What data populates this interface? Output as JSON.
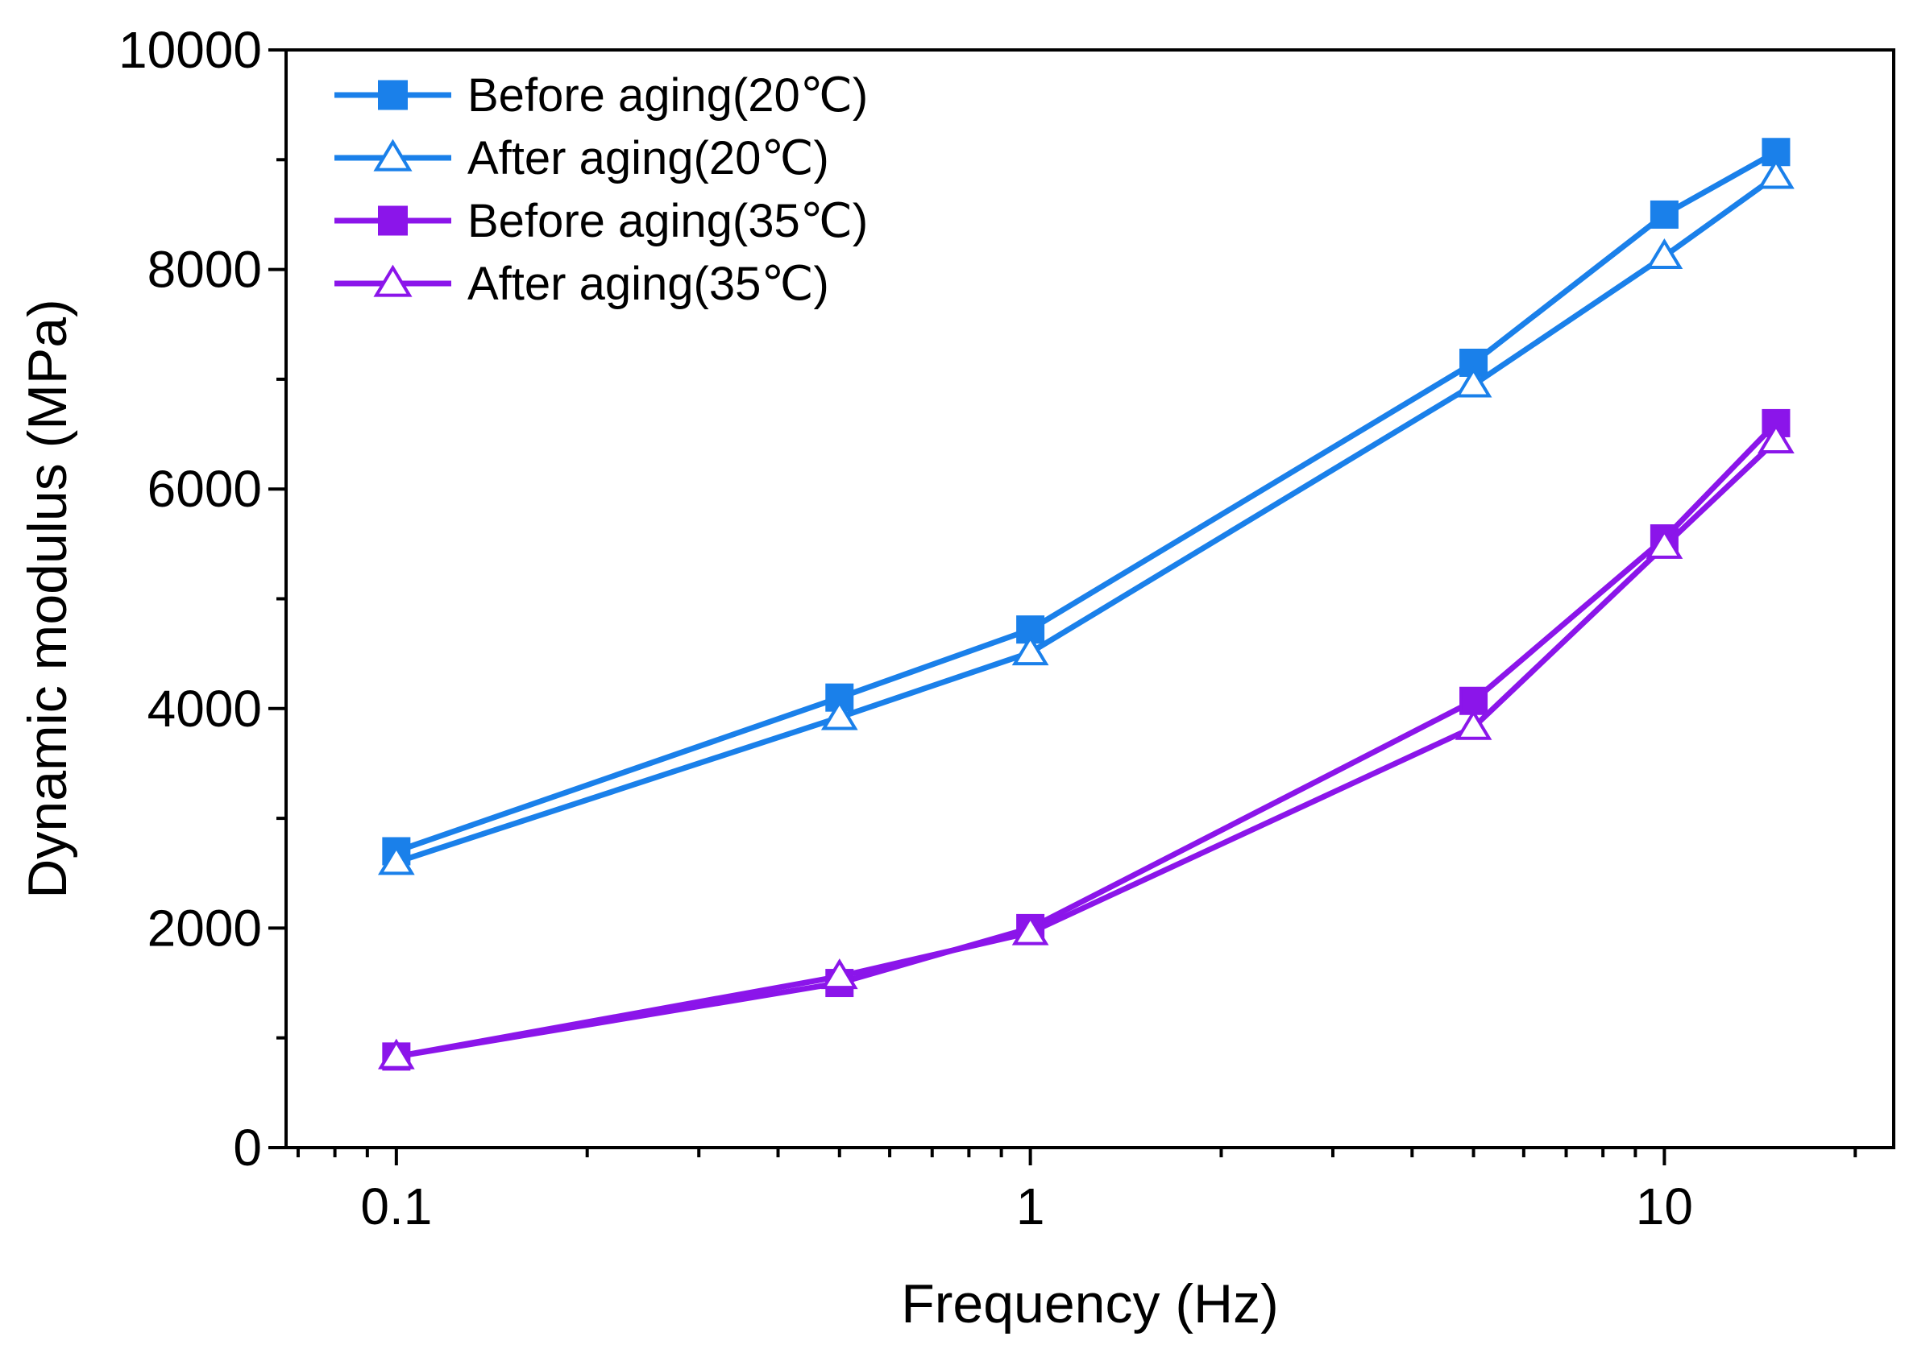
{
  "chart_data": {
    "type": "line",
    "title": "",
    "xlabel": "Frequency (Hz)",
    "ylabel": "Dynamic modulus (MPa)",
    "xscale": "log",
    "xlim": [
      0.067,
      23
    ],
    "ylim": [
      0,
      10000
    ],
    "x_ticks": [
      {
        "value": 0.1,
        "label": "0.1"
      },
      {
        "value": 1,
        "label": "1"
      },
      {
        "value": 10,
        "label": "10"
      }
    ],
    "y_ticks": [
      {
        "value": 0,
        "label": "0"
      },
      {
        "value": 2000,
        "label": "2000"
      },
      {
        "value": 4000,
        "label": "4000"
      },
      {
        "value": 6000,
        "label": "6000"
      },
      {
        "value": 8000,
        "label": "8000"
      },
      {
        "value": 10000,
        "label": "10000"
      }
    ],
    "legend_position": "top-left",
    "grid": false,
    "x": [
      0.1,
      0.5,
      1,
      5,
      10,
      15
    ],
    "series": [
      {
        "name": "Before aging(20℃)",
        "color": "#1a80ea",
        "marker": "square-filled",
        "values": [
          2700,
          4100,
          4720,
          7150,
          8500,
          9070
        ]
      },
      {
        "name": "After aging(20℃)",
        "color": "#1a80ea",
        "marker": "triangle-open",
        "values": [
          2600,
          3920,
          4510,
          6950,
          8120,
          8850
        ]
      },
      {
        "name": "Before aging(35℃)",
        "color": "#8b15ea",
        "marker": "square-filled",
        "values": [
          830,
          1500,
          2000,
          4070,
          5550,
          6600
        ]
      },
      {
        "name": "After aging(35℃)",
        "color": "#8b15ea",
        "marker": "triangle-open",
        "values": [
          830,
          1560,
          1960,
          3830,
          5480,
          6440
        ]
      }
    ]
  }
}
